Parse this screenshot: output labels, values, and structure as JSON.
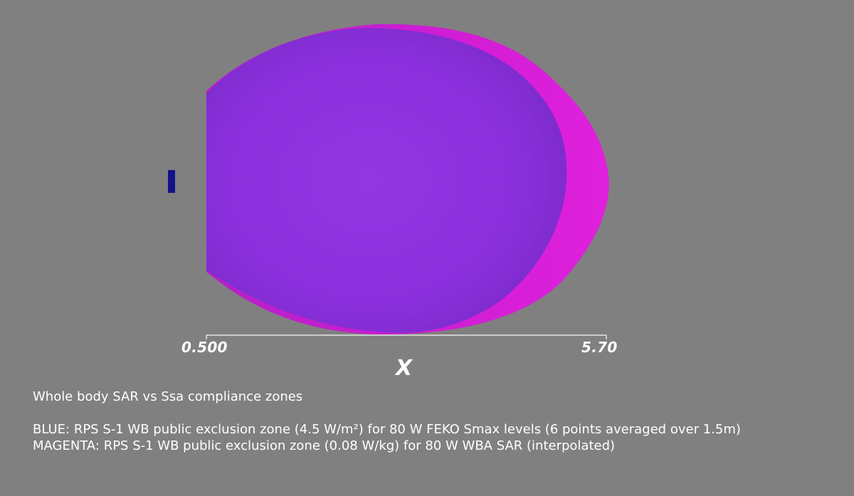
{
  "colors": {
    "background": "#808080",
    "magenta_zone": "#d21ed6",
    "blue_zone": "#8c30dc",
    "antenna": "#12128a",
    "axis": "#e6e6e6",
    "text": "#ffffff"
  },
  "axis": {
    "title": "X",
    "tick_min": "0.500",
    "tick_max": "5.70"
  },
  "caption": {
    "title": "Whole body SAR vs Ssa compliance zones",
    "line_blue": "BLUE: RPS S-1 WB public exclusion zone (4.5 W/m²) for 80 W FEKO Smax levels (6 points averaged over 1.5m)",
    "line_magenta": "MAGENTA: RPS S-1 WB public exclusion zone (0.08 W/kg) for 80 W WBA SAR (interpolated)"
  }
}
